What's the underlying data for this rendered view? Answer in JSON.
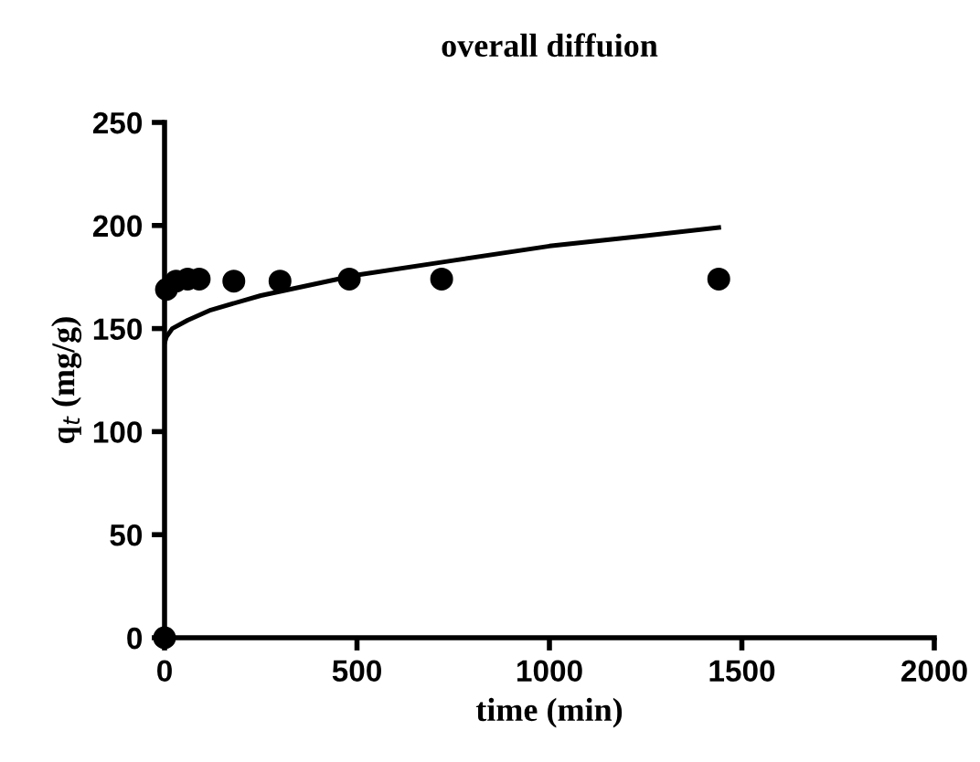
{
  "chart_data": {
    "type": "scatter",
    "title": "overall diffuion",
    "xlabel": "time (min)",
    "ylabel": "q$_{t}$ (mg/g)",
    "xlim": [
      0,
      2000
    ],
    "xticks": [
      0,
      500,
      1000,
      1500,
      2000
    ],
    "ylim": [
      0,
      250
    ],
    "yticks": [
      0,
      50,
      100,
      150,
      200,
      250
    ],
    "grid": false,
    "legend": false,
    "marker": "circle",
    "series": [
      {
        "color": "#000000",
        "x": [
          0,
          5,
          30,
          60,
          90,
          180,
          300,
          480,
          720,
          1440
        ],
        "values": [
          0,
          169,
          173,
          174,
          174,
          173,
          173,
          174,
          174,
          174
        ]
      },
      {
        "type": "line",
        "color": "#000000",
        "marker": "none",
        "line_style": "solid",
        "x": [
          0,
          5,
          20,
          60,
          120,
          250,
          500,
          750,
          1000,
          1250,
          1440
        ],
        "values": [
          143,
          146,
          150,
          154,
          159,
          166,
          176,
          183,
          190,
          195,
          199
        ]
      }
    ]
  }
}
